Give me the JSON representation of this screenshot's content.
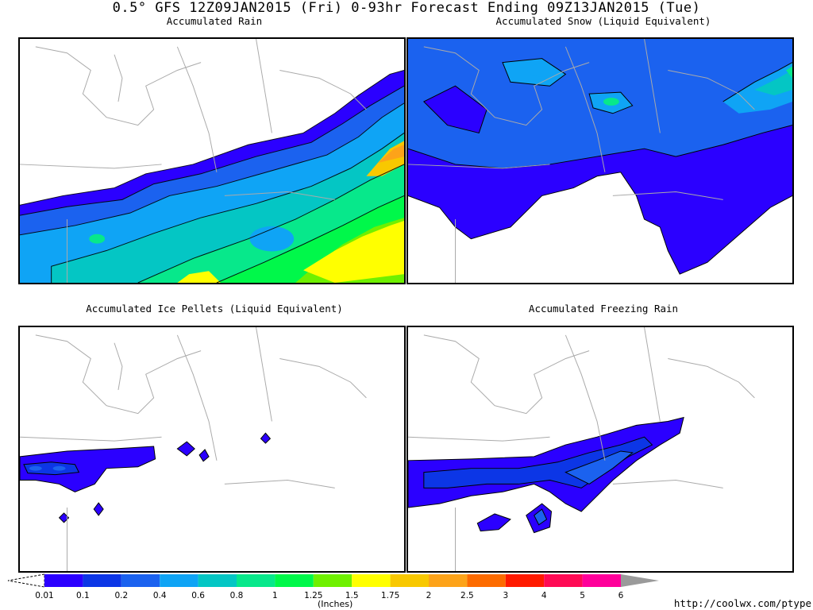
{
  "header": {
    "title": "0.5° GFS 12Z09JAN2015 (Fri) 0-93hr Forecast Ending 09Z13JAN2015 (Tue)"
  },
  "panels": [
    {
      "title": "Accumulated Rain"
    },
    {
      "title": "Accumulated Snow (Liquid Equivalent)"
    },
    {
      "title": "Accumulated Ice Pellets (Liquid Equivalent)"
    },
    {
      "title": "Accumulated Freezing Rain"
    }
  ],
  "legend": {
    "units": "(Inches)",
    "ticks": [
      "0.01",
      "0.1",
      "0.2",
      "0.4",
      "0.6",
      "0.8",
      "1",
      "1.25",
      "1.5",
      "1.75",
      "2",
      "2.5",
      "3",
      "4",
      "5",
      "6"
    ],
    "colors": [
      "#2b00ff",
      "#0c36e6",
      "#1b62ef",
      "#0fa4f5",
      "#04c6c4",
      "#07e88b",
      "#00f84a",
      "#6ff000",
      "#ffff00",
      "#f8c800",
      "#fda319",
      "#fd6b00",
      "#ff1a00",
      "#ff0a55",
      "#ff009a",
      "#000000",
      "#9a9a9a"
    ]
  },
  "footer": {
    "url": "http://coolwx.com/ptype"
  }
}
